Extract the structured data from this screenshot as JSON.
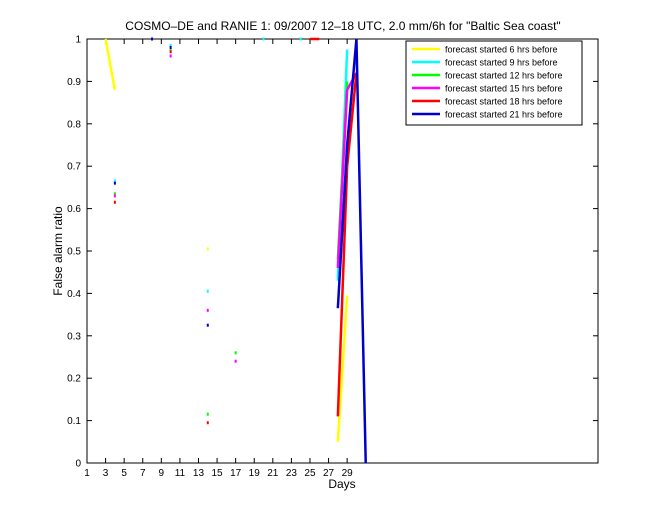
{
  "chart_data": {
    "type": "line",
    "title": "COSMO–DE and RANIE 1: 09/2007 12–18 UTC, 2.0 mm/6h for \"Baltic Sea coast\"",
    "xlabel": "Days",
    "ylabel": "False alarm ratio",
    "xlim": [
      1,
      56
    ],
    "ylim": [
      0,
      1
    ],
    "xticks": [
      1,
      3,
      5,
      7,
      9,
      11,
      13,
      15,
      17,
      19,
      21,
      23,
      25,
      27,
      29
    ],
    "xtick_labels": [
      "1",
      "3",
      "5",
      "7",
      "9",
      "11",
      "13",
      "15",
      "17",
      "19",
      "21",
      "23",
      "25",
      "27",
      "29"
    ],
    "yticks": [
      0,
      0.1,
      0.2,
      0.3,
      0.4,
      0.5,
      0.6,
      0.7,
      0.8,
      0.9,
      1
    ],
    "ytick_labels": [
      "0",
      "0.1",
      "0.2",
      "0.3",
      "0.4",
      "0.5",
      "0.6",
      "0.7",
      "0.8",
      "0.9",
      "1"
    ],
    "grid": false,
    "legend_position": "top-right",
    "series": [
      {
        "name": "forecast started 6 hrs before",
        "color": "#ffff00",
        "points": [
          [
            3,
            1.0
          ],
          [
            4,
            0.88
          ],
          [
            14,
            0.505
          ],
          [
            28,
            0.05
          ],
          [
            29,
            0.395
          ]
        ]
      },
      {
        "name": "forecast started 9 hrs before",
        "color": "#00ffff",
        "points": [
          [
            4,
            0.665
          ],
          [
            10,
            0.985
          ],
          [
            14,
            0.405
          ],
          [
            20,
            1.0
          ],
          [
            24,
            1.0
          ],
          [
            28,
            0.43
          ],
          [
            29,
            0.975
          ]
        ]
      },
      {
        "name": "forecast started 12 hrs before",
        "color": "#00ff00",
        "points": [
          [
            4,
            0.635
          ],
          [
            10,
            0.975
          ],
          [
            14,
            0.115
          ],
          [
            17,
            0.26
          ],
          [
            28,
            0.48
          ],
          [
            29,
            0.9
          ]
        ]
      },
      {
        "name": "forecast started 15 hrs before",
        "color": "#ff00ff",
        "points": [
          [
            4,
            0.63
          ],
          [
            10,
            0.96
          ],
          [
            14,
            0.36
          ],
          [
            17,
            0.24
          ],
          [
            28,
            0.46
          ],
          [
            29,
            0.88
          ],
          [
            30,
            0.92
          ]
        ]
      },
      {
        "name": "forecast started 18 hrs before",
        "color": "#ff0000",
        "points": [
          [
            4,
            0.615
          ],
          [
            10,
            0.97
          ],
          [
            14,
            0.095
          ],
          [
            25,
            1.0
          ],
          [
            26,
            1.0
          ],
          [
            28,
            0.11
          ],
          [
            29,
            0.7
          ],
          [
            30,
            0.92
          ]
        ]
      },
      {
        "name": "forecast started 21 hrs before",
        "color": "#0000cc",
        "points": [
          [
            4,
            0.66
          ],
          [
            8,
            1.0
          ],
          [
            10,
            0.98
          ],
          [
            14,
            0.325
          ],
          [
            28,
            0.365
          ],
          [
            29,
            0.75
          ],
          [
            30,
            1.0
          ],
          [
            31,
            0.0
          ]
        ]
      }
    ]
  }
}
